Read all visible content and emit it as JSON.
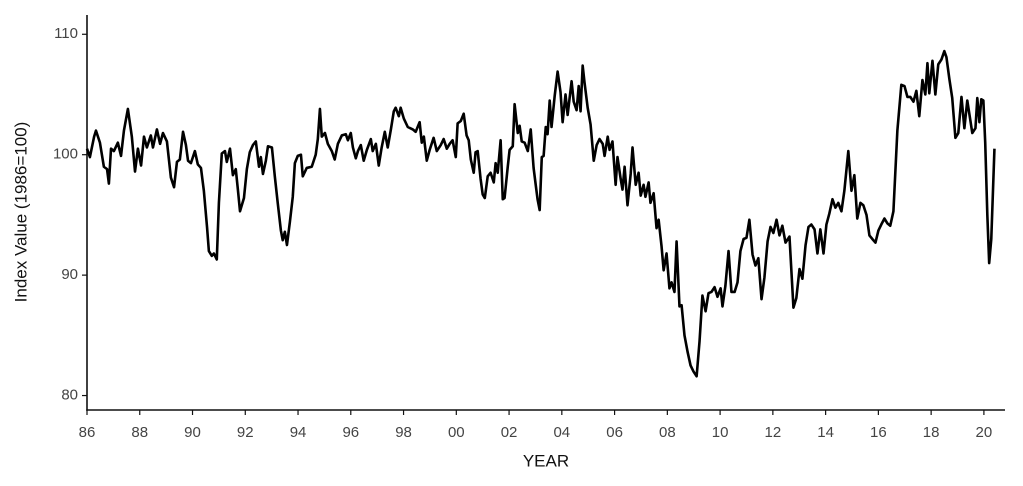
{
  "chart_data": {
    "type": "line",
    "xlabel": "YEAR",
    "ylabel": "Index Value (1986=100)",
    "color": "#000000",
    "grid": false,
    "xlim": [
      1986,
      2020.8
    ],
    "ylim": [
      78.8,
      111.6
    ],
    "xticks": [
      {
        "value": 1986,
        "label": "86"
      },
      {
        "value": 1988,
        "label": "88"
      },
      {
        "value": 1990,
        "label": "90"
      },
      {
        "value": 1992,
        "label": "92"
      },
      {
        "value": 1994,
        "label": "94"
      },
      {
        "value": 1996,
        "label": "96"
      },
      {
        "value": 1998,
        "label": "98"
      },
      {
        "value": 2000,
        "label": "00"
      },
      {
        "value": 2002,
        "label": "02"
      },
      {
        "value": 2004,
        "label": "04"
      },
      {
        "value": 2006,
        "label": "06"
      },
      {
        "value": 2008,
        "label": "08"
      },
      {
        "value": 2010,
        "label": "10"
      },
      {
        "value": 2012,
        "label": "12"
      },
      {
        "value": 2014,
        "label": "14"
      },
      {
        "value": 2016,
        "label": "16"
      },
      {
        "value": 2018,
        "label": "18"
      },
      {
        "value": 2020,
        "label": "20"
      }
    ],
    "yticks": [
      80,
      90,
      100,
      110
    ],
    "x": [
      1986.0,
      1986.11,
      1986.27,
      1986.34,
      1986.49,
      1986.64,
      1986.76,
      1986.83,
      1986.91,
      1987.02,
      1987.17,
      1987.29,
      1987.4,
      1987.55,
      1987.7,
      1987.82,
      1987.93,
      1988.05,
      1988.16,
      1988.27,
      1988.42,
      1988.5,
      1988.65,
      1988.77,
      1988.88,
      1989.03,
      1989.18,
      1989.3,
      1989.41,
      1989.52,
      1989.64,
      1989.75,
      1989.83,
      1989.94,
      1990.09,
      1990.2,
      1990.32,
      1990.43,
      1990.55,
      1990.62,
      1990.73,
      1990.81,
      1990.92,
      1991.0,
      1991.11,
      1991.23,
      1991.3,
      1991.42,
      1991.53,
      1991.64,
      1991.72,
      1991.8,
      1991.95,
      1992.06,
      1992.17,
      1992.29,
      1992.4,
      1992.52,
      1992.59,
      1992.67,
      1992.78,
      1992.86,
      1993.01,
      1993.12,
      1993.23,
      1993.35,
      1993.42,
      1993.5,
      1993.58,
      1993.69,
      1993.8,
      1993.88,
      1993.99,
      1994.11,
      1994.18,
      1994.33,
      1994.52,
      1994.67,
      1994.75,
      1994.83,
      1994.9,
      1995.02,
      1995.13,
      1995.28,
      1995.39,
      1995.51,
      1995.66,
      1995.81,
      1995.89,
      1996.0,
      1996.08,
      1996.19,
      1996.27,
      1996.38,
      1996.49,
      1996.61,
      1996.76,
      1996.83,
      1996.95,
      1997.06,
      1997.17,
      1997.29,
      1997.4,
      1997.52,
      1997.63,
      1997.7,
      1997.82,
      1997.89,
      1998.01,
      1998.16,
      1998.35,
      1998.46,
      1998.61,
      1998.69,
      1998.77,
      1998.88,
      1998.99,
      1999.14,
      1999.26,
      1999.41,
      1999.52,
      1999.64,
      1999.75,
      1999.86,
      1999.98,
      2000.05,
      2000.17,
      2000.28,
      2000.39,
      2000.47,
      2000.55,
      2000.66,
      2000.73,
      2000.81,
      2000.92,
      2001.0,
      2001.08,
      2001.19,
      2001.3,
      2001.42,
      2001.49,
      2001.57,
      2001.68,
      2001.76,
      2001.83,
      2001.95,
      2002.02,
      2002.14,
      2002.21,
      2002.33,
      2002.4,
      2002.48,
      2002.59,
      2002.71,
      2002.82,
      2002.93,
      2003.01,
      2003.08,
      2003.16,
      2003.24,
      2003.31,
      2003.39,
      2003.46,
      2003.54,
      2003.61,
      2003.73,
      2003.84,
      2003.95,
      2004.03,
      2004.14,
      2004.22,
      2004.37,
      2004.45,
      2004.56,
      2004.64,
      2004.71,
      2004.79,
      2004.86,
      2004.98,
      2005.09,
      2005.21,
      2005.32,
      2005.43,
      2005.55,
      2005.62,
      2005.74,
      2005.81,
      2005.92,
      2006.04,
      2006.11,
      2006.23,
      2006.3,
      2006.38,
      2006.49,
      2006.61,
      2006.68,
      2006.8,
      2006.91,
      2006.99,
      2007.1,
      2007.17,
      2007.29,
      2007.36,
      2007.48,
      2007.59,
      2007.67,
      2007.78,
      2007.86,
      2007.97,
      2008.08,
      2008.16,
      2008.27,
      2008.35,
      2008.46,
      2008.54,
      2008.65,
      2008.77,
      2008.88,
      2008.99,
      2009.11,
      2009.22,
      2009.33,
      2009.45,
      2009.56,
      2009.67,
      2009.79,
      2009.9,
      2010.02,
      2010.09,
      2010.2,
      2010.32,
      2010.43,
      2010.55,
      2010.66,
      2010.77,
      2010.89,
      2011.0,
      2011.11,
      2011.23,
      2011.34,
      2011.45,
      2011.57,
      2011.68,
      2011.8,
      2011.91,
      2012.02,
      2012.14,
      2012.25,
      2012.36,
      2012.48,
      2012.63,
      2012.78,
      2012.89,
      2013.01,
      2013.12,
      2013.24,
      2013.35,
      2013.46,
      2013.58,
      2013.69,
      2013.8,
      2013.92,
      2014.03,
      2014.14,
      2014.26,
      2014.37,
      2014.48,
      2014.6,
      2014.71,
      2014.86,
      2014.98,
      2015.09,
      2015.2,
      2015.32,
      2015.43,
      2015.55,
      2015.66,
      2015.77,
      2015.89,
      2016.0,
      2016.11,
      2016.23,
      2016.34,
      2016.45,
      2016.57,
      2016.72,
      2016.87,
      2016.99,
      2017.1,
      2017.21,
      2017.33,
      2017.44,
      2017.55,
      2017.67,
      2017.78,
      2017.86,
      2017.93,
      2018.05,
      2018.16,
      2018.27,
      2018.39,
      2018.5,
      2018.58,
      2018.69,
      2018.8,
      2018.92,
      2019.03,
      2019.15,
      2019.26,
      2019.37,
      2019.49,
      2019.56,
      2019.68,
      2019.75,
      2019.83,
      2019.9,
      2019.98,
      2020.05,
      2020.13,
      2020.2,
      2020.28,
      2020.4
    ],
    "values": [
      100.5,
      99.8,
      101.5,
      102,
      101,
      99,
      98.8,
      97.6,
      100.5,
      100.3,
      101,
      99.9,
      102,
      103.8,
      101.5,
      98.6,
      100.5,
      99.1,
      101.5,
      100.6,
      101.6,
      100.6,
      102.1,
      100.9,
      101.8,
      101.1,
      98.1,
      97.3,
      99.4,
      99.6,
      101.9,
      100.8,
      99.5,
      99.3,
      100.3,
      99.2,
      98.9,
      97,
      94,
      92,
      91.6,
      91.8,
      91.3,
      96,
      100.1,
      100.3,
      99.4,
      100.5,
      98.3,
      98.8,
      97.1,
      95.3,
      96.4,
      98.8,
      100.2,
      100.8,
      101.1,
      99,
      99.8,
      98.4,
      99.5,
      100.7,
      100.6,
      98.2,
      96,
      93.7,
      92.9,
      93.6,
      92.5,
      94.4,
      96.5,
      99.3,
      99.9,
      100,
      98.2,
      98.9,
      99,
      100,
      101.3,
      103.8,
      101.5,
      101.8,
      100.9,
      100.3,
      99.6,
      100.9,
      101.6,
      101.7,
      101.2,
      101.8,
      100.6,
      99.7,
      100.3,
      100.8,
      99.5,
      100.4,
      101.3,
      100.3,
      100.9,
      99.1,
      100.6,
      101.9,
      100.6,
      102.1,
      103.6,
      103.9,
      103.2,
      103.9,
      103,
      102.3,
      102.1,
      101.9,
      102.7,
      101,
      101.5,
      99.5,
      100.4,
      101.4,
      100.3,
      100.8,
      101.3,
      100.5,
      100.9,
      101.2,
      99.8,
      102.6,
      102.8,
      103.4,
      101.6,
      101.2,
      99.6,
      98.5,
      100.2,
      100.3,
      98,
      96.7,
      96.4,
      98.2,
      98.5,
      97.7,
      99.3,
      98.5,
      101.2,
      96.3,
      96.4,
      99,
      100.4,
      100.7,
      104.2,
      101.8,
      102.4,
      101.1,
      101,
      100.3,
      102.1,
      98.9,
      97.5,
      96.3,
      95.4,
      99.8,
      99.9,
      102.3,
      101.7,
      104.5,
      102.3,
      104.9,
      106.9,
      105.2,
      102.7,
      105,
      103.3,
      106.1,
      104.4,
      103.7,
      105.7,
      103.6,
      107.4,
      106,
      103.9,
      102.5,
      99.5,
      100.8,
      101.3,
      100.9,
      99.9,
      101.5,
      100.4,
      101.1,
      97.5,
      99.8,
      98,
      97.1,
      99,
      95.8,
      98.4,
      100.6,
      97.5,
      98.5,
      96.6,
      97.5,
      96.5,
      97.7,
      96,
      96.8,
      93.9,
      94.6,
      92.4,
      90.4,
      91.8,
      88.9,
      89.4,
      88.6,
      92.8,
      87.4,
      87.5,
      85,
      83.6,
      82.5,
      82,
      81.6,
      84.5,
      88.3,
      87,
      88.5,
      88.6,
      89,
      88.2,
      88.9,
      87.4,
      89.1,
      92,
      88.6,
      88.6,
      89.4,
      92,
      93,
      93.1,
      94.6,
      91.7,
      90.8,
      91.4,
      88,
      89.8,
      92.8,
      94,
      93.5,
      94.6,
      93.3,
      94.1,
      92.7,
      93.2,
      87.3,
      88.1,
      90.5,
      89.7,
      92.5,
      94,
      94.2,
      93.8,
      91.8,
      93.8,
      91.8,
      94.2,
      95.1,
      96.3,
      95.6,
      96,
      95.3,
      97,
      100.3,
      97,
      98.3,
      94.7,
      96,
      95.8,
      95,
      93.3,
      93,
      92.7,
      93.7,
      94.2,
      94.7,
      94.3,
      94.1,
      95.3,
      102,
      105.8,
      105.7,
      104.8,
      104.8,
      104.4,
      105.3,
      103.2,
      106.2,
      105,
      107.6,
      105.1,
      107.8,
      105,
      107.5,
      107.9,
      108.6,
      108.1,
      106.3,
      104.7,
      101.4,
      101.8,
      104.8,
      102.2,
      104.5,
      102.8,
      101.8,
      102.2,
      104.7,
      102.7,
      104.6,
      104.5,
      101,
      95,
      91,
      93,
      100.5
    ]
  }
}
